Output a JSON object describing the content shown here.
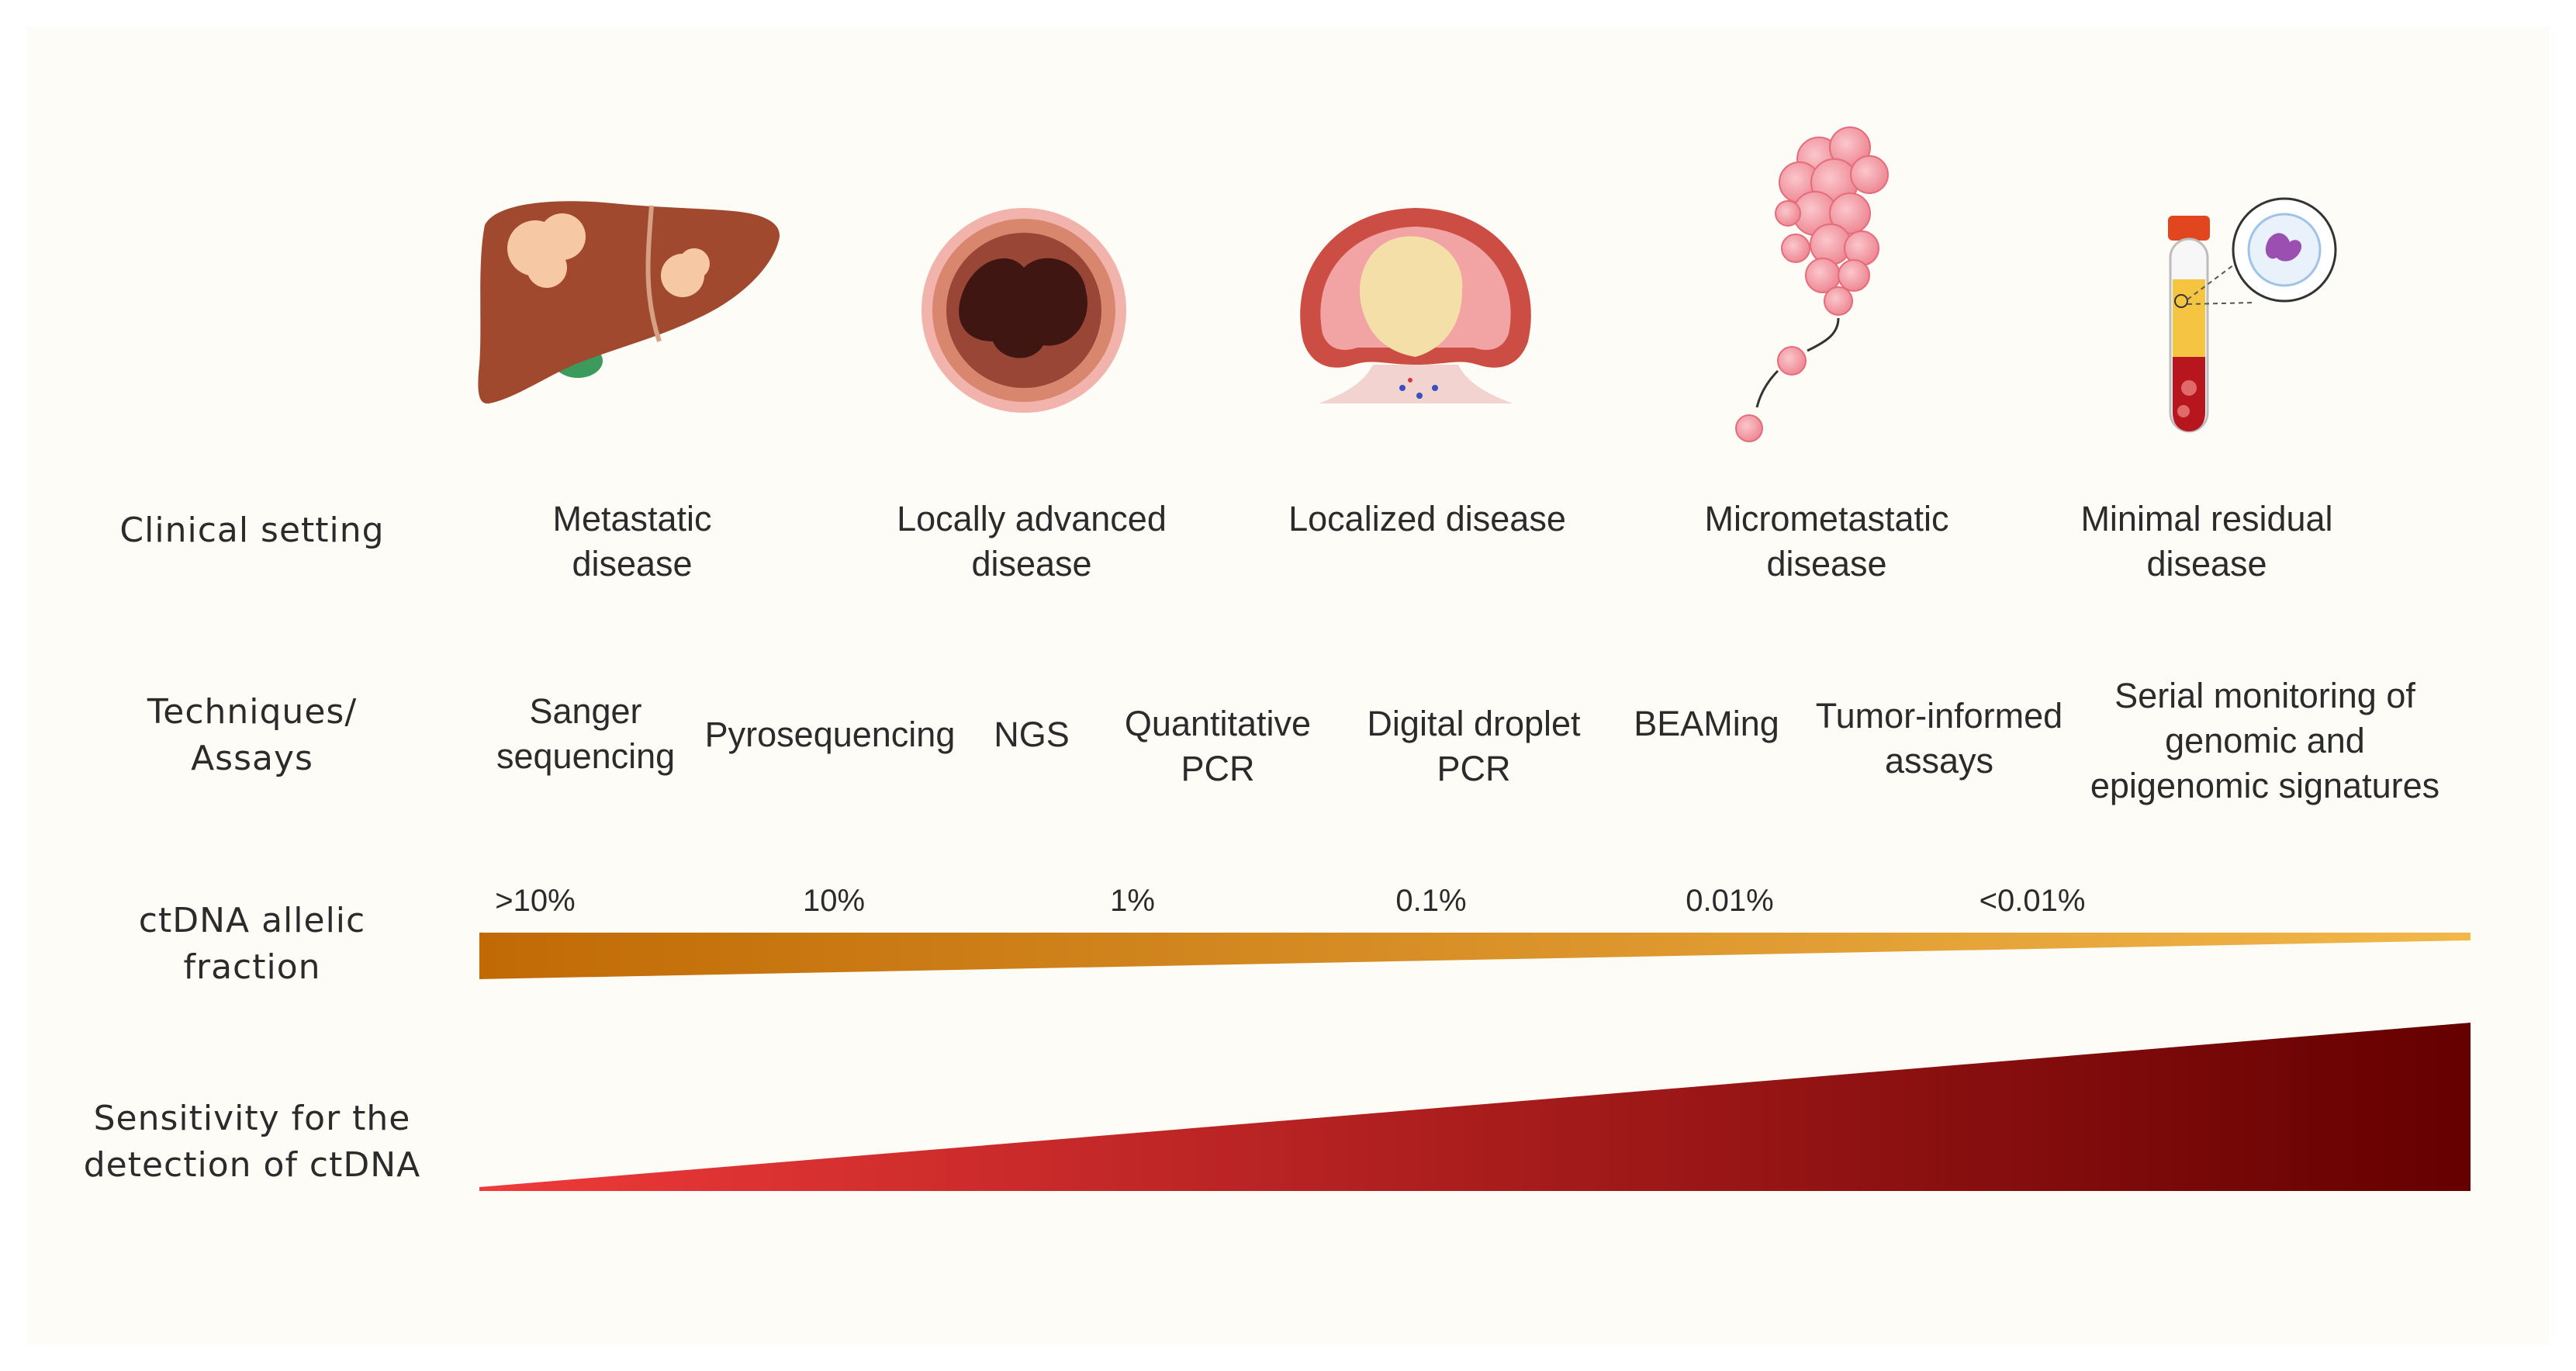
{
  "row_labels": {
    "clinical": [
      "Clinical setting"
    ],
    "techniques": [
      "Techniques/",
      "Assays"
    ],
    "allelic": [
      "ctDNA allelic",
      "fraction"
    ],
    "sensitivity": [
      "Sensitivity for the",
      "detection of ctDNA"
    ]
  },
  "clinical_settings": [
    {
      "lines": [
        "Metastatic",
        "disease"
      ]
    },
    {
      "lines": [
        "Locally advanced",
        "disease"
      ]
    },
    {
      "lines": [
        "Localized disease"
      ]
    },
    {
      "lines": [
        "Micrometastatic",
        "disease"
      ]
    },
    {
      "lines": [
        "Minimal residual",
        "disease"
      ]
    }
  ],
  "techniques": [
    {
      "lines": [
        "Sanger",
        "sequencing"
      ]
    },
    {
      "lines": [
        "Pyrosequencing"
      ]
    },
    {
      "lines": [
        "NGS"
      ]
    },
    {
      "lines": [
        "Quantitative",
        "PCR"
      ]
    },
    {
      "lines": [
        "Digital droplet",
        "PCR"
      ]
    },
    {
      "lines": [
        "BEAMing"
      ]
    },
    {
      "lines": [
        "Tumor-informed",
        "assays"
      ]
    },
    {
      "lines": [
        "Serial monitoring of",
        "genomic and",
        "epigenomic signatures"
      ]
    }
  ],
  "allelic_fractions": [
    ">10%",
    "10%",
    "1%",
    "0.1%",
    "0.01%",
    "<0.01%"
  ],
  "colors": {
    "panel_bg": "#fdfcf7",
    "allelic_start": "#c06a06",
    "allelic_end": "#f2b74a",
    "sensitivity_start": "#ef3a3a",
    "sensitivity_end": "#650000"
  },
  "illustrations": [
    {
      "name": "liver-with-metastases-icon"
    },
    {
      "name": "locally-advanced-tumor-icon"
    },
    {
      "name": "localized-tumor-icon"
    },
    {
      "name": "micrometastasis-cluster-icon"
    },
    {
      "name": "blood-tube-ctdna-icon"
    }
  ]
}
